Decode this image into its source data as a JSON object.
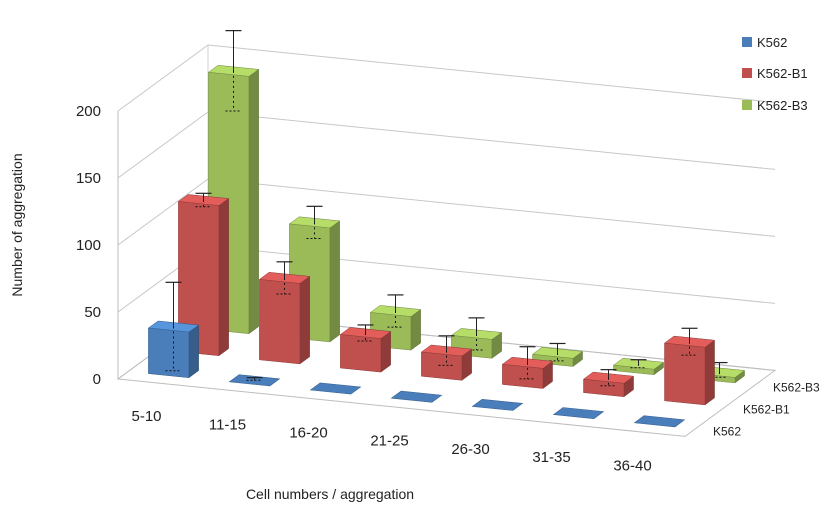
{
  "chart_data": {
    "type": "bar",
    "subtype": "3d-column",
    "title": "",
    "xlabel": "Cell numbers / aggregation",
    "ylabel": "Number of aggregation",
    "ylim": [
      0,
      200
    ],
    "yticks": [
      0,
      50,
      100,
      150,
      200
    ],
    "categories": [
      "5-10",
      "11-15",
      "16-20",
      "21-25",
      "26-30",
      "31-35",
      "36-40"
    ],
    "depth_labels": [
      "K562",
      "K562-B1",
      "K562-B3"
    ],
    "series": [
      {
        "name": "K562",
        "color": "#4a7ebb",
        "values": [
          34,
          0,
          0,
          0,
          0,
          0,
          0
        ],
        "errors": [
          33,
          2,
          0,
          0,
          0,
          0,
          0
        ]
      },
      {
        "name": "K562-B1",
        "color": "#c0504d",
        "values": [
          112,
          60,
          25,
          18,
          15,
          10,
          43
        ],
        "errors": [
          5,
          12,
          6,
          11,
          12,
          6,
          10
        ]
      },
      {
        "name": "K562-B3",
        "color": "#9bbb59",
        "values": [
          192,
          85,
          25,
          14,
          6,
          4,
          4
        ],
        "errors": [
          30,
          12,
          12,
          12,
          7,
          3,
          7
        ]
      }
    ],
    "grid": true,
    "legend": {
      "position": "right",
      "entries": [
        "K562",
        "K562-B1",
        "K562-B3"
      ]
    }
  }
}
